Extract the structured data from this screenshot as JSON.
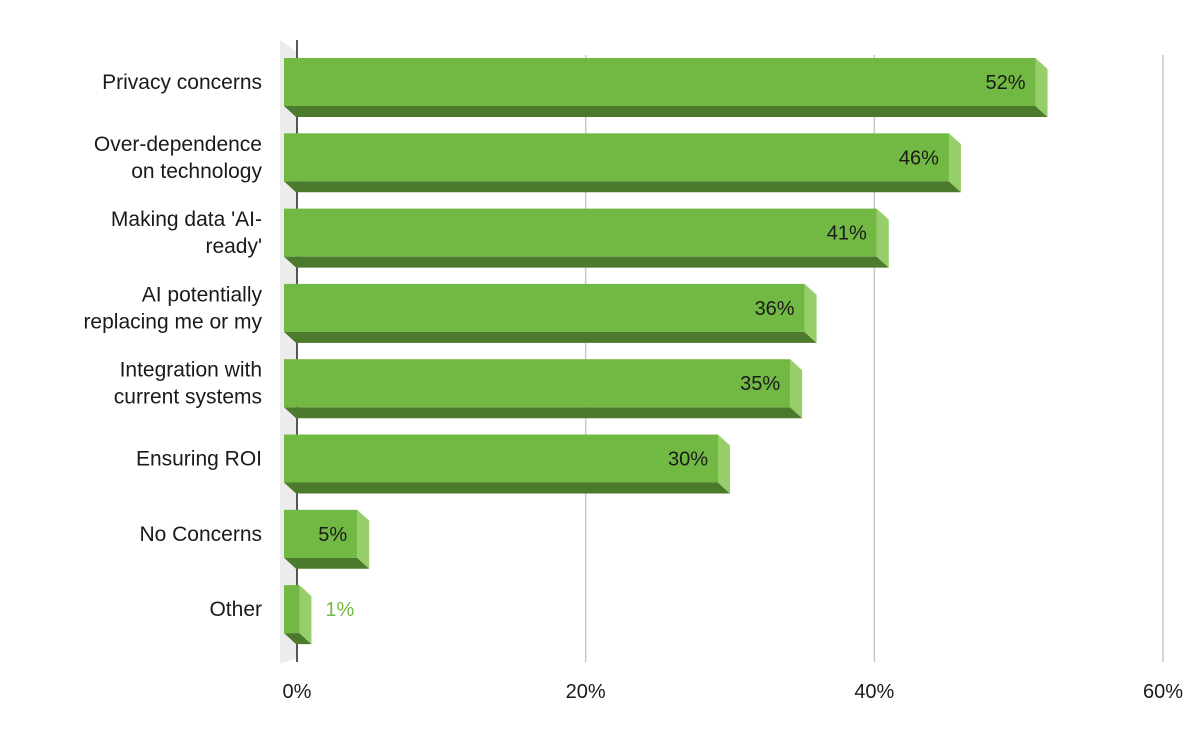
{
  "chart_data": {
    "type": "bar",
    "orientation": "horizontal",
    "categories": [
      [
        "Privacy concerns"
      ],
      [
        "Over-dependence",
        "on technology"
      ],
      [
        "Making data 'AI-",
        "ready'"
      ],
      [
        "AI potentially",
        "replacing me or my"
      ],
      [
        "Integration with",
        "current systems"
      ],
      [
        "Ensuring ROI"
      ],
      [
        "No Concerns"
      ],
      [
        "Other"
      ]
    ],
    "values": [
      52,
      46,
      41,
      36,
      35,
      30,
      5,
      1
    ],
    "data_labels": [
      "52%",
      "46%",
      "41%",
      "36%",
      "35%",
      "30%",
      "5%",
      "1%"
    ],
    "x_ticks": [
      0,
      20,
      40,
      60
    ],
    "x_tick_labels": [
      "0%",
      "20%",
      "40%",
      "60%"
    ],
    "xlim": [
      0,
      60
    ],
    "grid": true,
    "legend": "none",
    "style": "3d",
    "colors": {
      "bar_front": "#72b944",
      "bar_top": "#4c7a2c",
      "bar_side": "#96cf6a",
      "grid": "#c8c8c8",
      "label_inside": "#1a1a1a",
      "label_outside": "#72b944"
    }
  }
}
